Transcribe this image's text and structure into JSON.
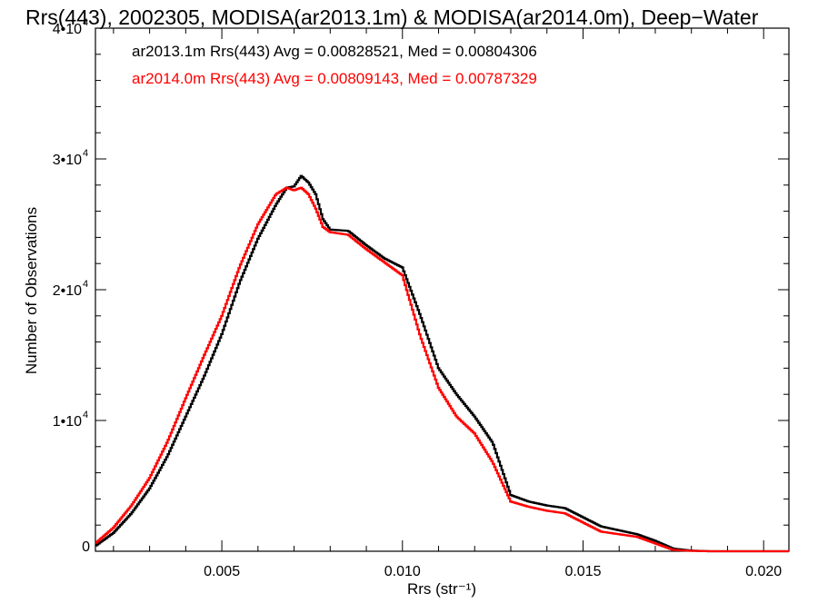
{
  "chart_data": {
    "type": "line",
    "title": "Rrs(443), 2002305, MODISA(ar2013.1m) & MODISA(ar2014.0m), Deep−Water",
    "xlabel": "Rrs (str⁻¹)",
    "ylabel": "Number of Observations",
    "xlim": [
      0.0015,
      0.0207
    ],
    "ylim": [
      0,
      40000
    ],
    "grid": false,
    "x_ticks": [
      {
        "value": 0.005,
        "label": "0.005"
      },
      {
        "value": 0.01,
        "label": "0.010"
      },
      {
        "value": 0.015,
        "label": "0.015"
      },
      {
        "value": 0.02,
        "label": "0.020"
      }
    ],
    "y_ticks": [
      {
        "value": 0,
        "label": "0"
      },
      {
        "value": 10000,
        "mant": "1•10",
        "exp": "4"
      },
      {
        "value": 20000,
        "mant": "2•10",
        "exp": "4"
      },
      {
        "value": 30000,
        "mant": "3•10",
        "exp": "4"
      },
      {
        "value": 40000,
        "mant": "4•10",
        "exp": "4"
      }
    ],
    "legend_placement": "top-left",
    "series": [
      {
        "name": "ar2013.1m",
        "color": "#000000",
        "annotation": "ar2013.1m Rrs(443) Avg = 0.00828521, Med = 0.00804306",
        "x": [
          0.0015,
          0.002,
          0.0025,
          0.003,
          0.0035,
          0.004,
          0.0045,
          0.005,
          0.0055,
          0.006,
          0.0065,
          0.0068,
          0.007,
          0.0072,
          0.0074,
          0.0076,
          0.0078,
          0.008,
          0.0085,
          0.009,
          0.0095,
          0.01,
          0.0105,
          0.011,
          0.0115,
          0.012,
          0.0125,
          0.013,
          0.0135,
          0.014,
          0.0145,
          0.015,
          0.0155,
          0.016,
          0.0165,
          0.017,
          0.0175,
          0.018,
          0.0185,
          0.019,
          0.02,
          0.0207
        ],
        "y": [
          400,
          1400,
          2900,
          4800,
          7300,
          10300,
          13300,
          16600,
          20600,
          23900,
          26500,
          27800,
          27900,
          28700,
          28200,
          27300,
          25400,
          24600,
          24500,
          23400,
          22400,
          21700,
          18000,
          14000,
          12000,
          10300,
          8300,
          4300,
          3800,
          3500,
          3300,
          2600,
          1900,
          1600,
          1300,
          800,
          200,
          50,
          0,
          0,
          0,
          0
        ]
      },
      {
        "name": "ar2014.0m",
        "color": "#ff0000",
        "annotation": "ar2014.0m Rrs(443) Avg = 0.00809143, Med = 0.00787329",
        "x": [
          0.0015,
          0.002,
          0.0025,
          0.003,
          0.0035,
          0.004,
          0.0045,
          0.005,
          0.0055,
          0.006,
          0.0065,
          0.0068,
          0.007,
          0.0072,
          0.0074,
          0.0076,
          0.0078,
          0.008,
          0.0085,
          0.009,
          0.0095,
          0.01,
          0.0105,
          0.011,
          0.0115,
          0.012,
          0.0125,
          0.013,
          0.0135,
          0.014,
          0.0145,
          0.015,
          0.0155,
          0.016,
          0.0165,
          0.017,
          0.0175,
          0.018,
          0.0185,
          0.019,
          0.02,
          0.0207
        ],
        "y": [
          600,
          1800,
          3500,
          5600,
          8400,
          11700,
          14900,
          18000,
          21800,
          25000,
          27300,
          27800,
          27600,
          27800,
          27300,
          26200,
          24800,
          24400,
          24200,
          23100,
          22100,
          21100,
          16400,
          12500,
          10300,
          9000,
          6800,
          3800,
          3400,
          3100,
          2900,
          2200,
          1500,
          1300,
          1100,
          600,
          100,
          30,
          0,
          0,
          0,
          0
        ]
      }
    ]
  }
}
